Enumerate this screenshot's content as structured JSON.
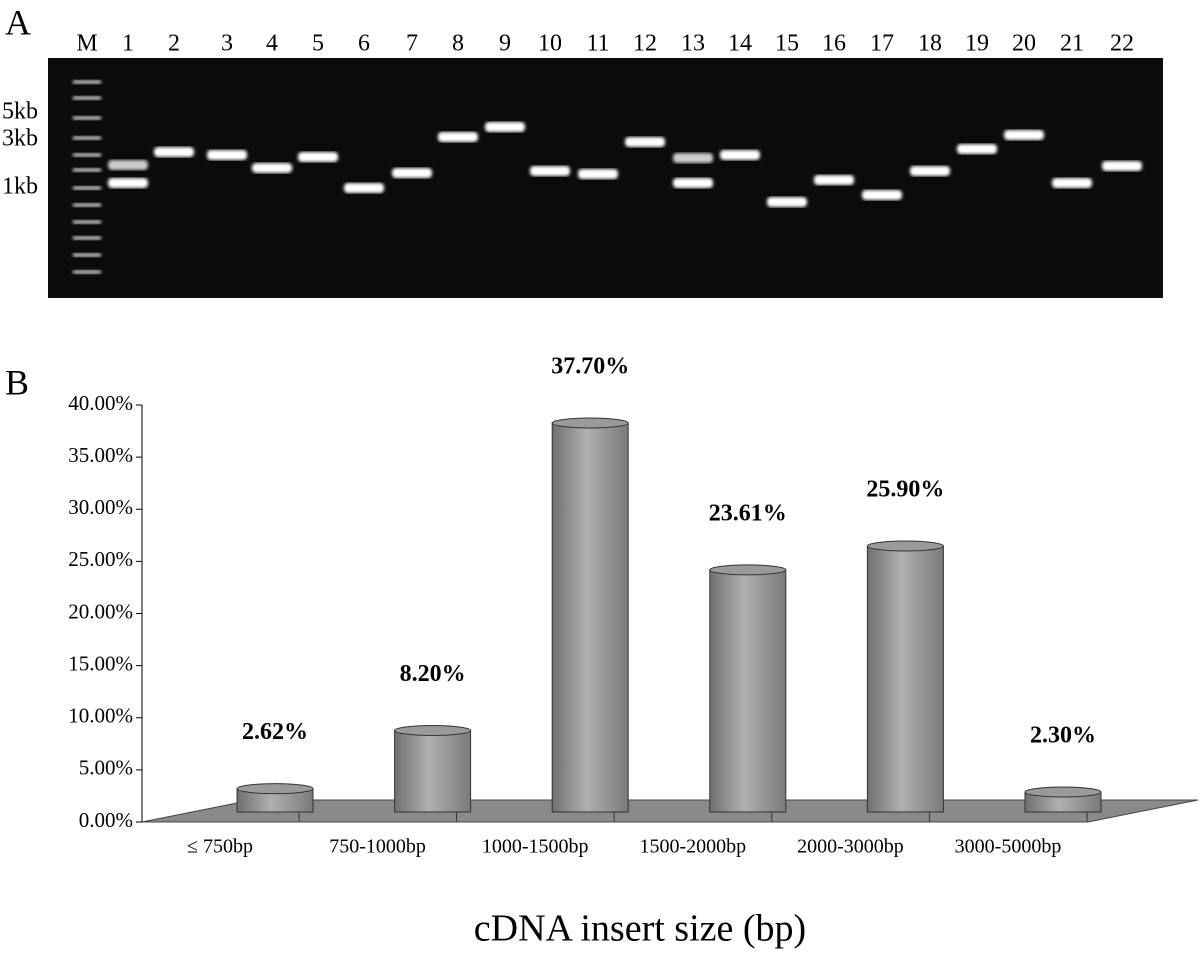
{
  "gel": {
    "panel_label": "A",
    "lane_labels": [
      "M",
      "1",
      "2",
      "3",
      "4",
      "5",
      "6",
      "7",
      "8",
      "9",
      "10",
      "11",
      "12",
      "13",
      "14",
      "15",
      "16",
      "17",
      "18",
      "19",
      "20",
      "21",
      "22"
    ],
    "size_labels": [
      "5kb",
      "3kb",
      "1kb"
    ]
  },
  "chart_data": {
    "type": "bar",
    "panel_label": "B",
    "x_label": "cDNA insert size (bp)",
    "categories": [
      "≤ 750bp",
      "750-1000bp",
      "1000-1500bp",
      "1500-2000bp",
      "2000-3000bp",
      "3000-5000bp"
    ],
    "values": [
      2.62,
      8.2,
      37.7,
      23.61,
      25.9,
      2.3
    ],
    "value_labels": [
      "2.62%",
      "8.20%",
      "37.70%",
      "23.61%",
      "25.90%",
      "2.30%"
    ],
    "color": "#9a9a9a",
    "ylim": [
      0,
      40
    ],
    "yticks": [
      {
        "value": 0,
        "label": "0.00%"
      },
      {
        "value": 5,
        "label": "5.00%"
      },
      {
        "value": 10,
        "label": "10.00%"
      },
      {
        "value": 15,
        "label": "15.00%"
      },
      {
        "value": 20,
        "label": "20.00%"
      },
      {
        "value": 25,
        "label": "25.00%"
      },
      {
        "value": 30,
        "label": "30.00%"
      },
      {
        "value": 35,
        "label": "35.00%"
      },
      {
        "value": 40,
        "label": "40.00%"
      }
    ]
  }
}
